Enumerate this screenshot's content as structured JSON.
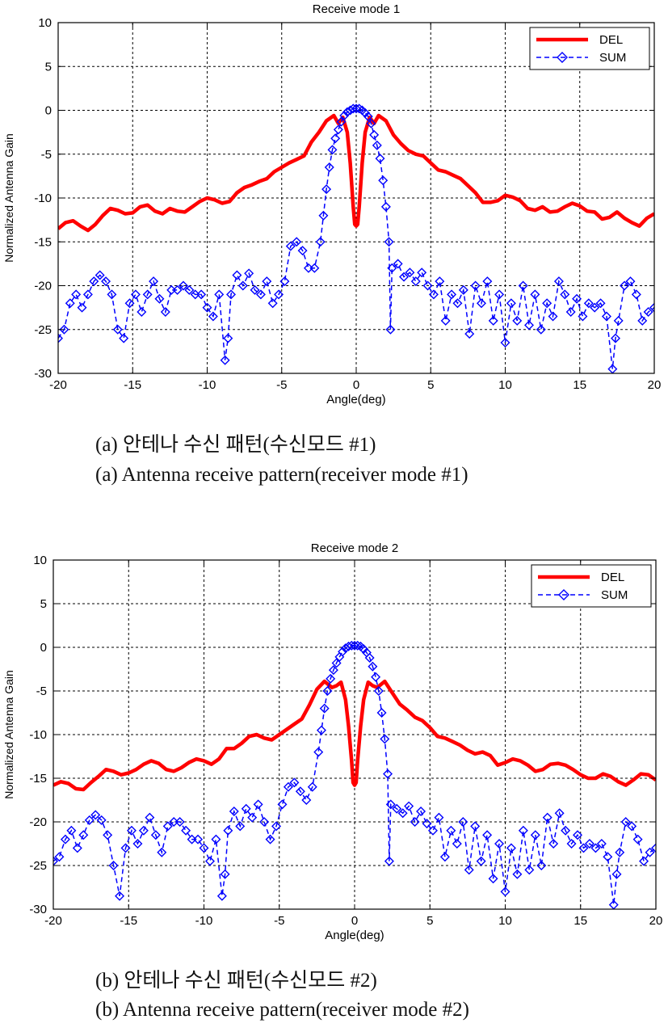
{
  "figures": [
    {
      "caption_ko": "(a)  안테나  수신  패턴(수신모드 #1)",
      "caption_en": "(a)  Antenna  receive  pattern(receiver  mode #1)"
    },
    {
      "caption_ko": "(b)  안테나  수신  패턴(수신모드 #2)",
      "caption_en": "(b)  Antenna receive  pattern(receiver  mode #2)"
    }
  ],
  "colors": {
    "del": "#ff0000",
    "sum": "#0000ff",
    "grid": "#000000"
  },
  "chart_data": [
    {
      "type": "line",
      "title": "Receive mode 1",
      "xlabel": "Angle(deg)",
      "ylabel": "Normalized Antenna Gain",
      "xlim": [
        -20,
        20
      ],
      "ylim": [
        -30,
        10
      ],
      "xticks": [
        -20,
        -15,
        -10,
        -5,
        0,
        5,
        10,
        15,
        20
      ],
      "yticks": [
        -30,
        -25,
        -20,
        -15,
        -10,
        -5,
        0,
        5,
        10
      ],
      "grid": true,
      "legend": "top-right",
      "series": [
        {
          "name": "DEL",
          "style": "solid-line",
          "color": "#ff0000",
          "x": [
            -20,
            -19.5,
            -19,
            -18.5,
            -18,
            -17.5,
            -17,
            -16.5,
            -16,
            -15.5,
            -15,
            -14.5,
            -14,
            -13.5,
            -13,
            -12.5,
            -12,
            -11.5,
            -11,
            -10.5,
            -10,
            -9.5,
            -9,
            -8.5,
            -8,
            -7.5,
            -7,
            -6.5,
            -6,
            -5.5,
            -5,
            -4.5,
            -4,
            -3.5,
            -3,
            -2.5,
            -2,
            -1.5,
            -1.2,
            -0.9,
            -0.6,
            -0.4,
            -0.2,
            -0.1,
            0,
            0.1,
            0.2,
            0.4,
            0.6,
            0.9,
            1.2,
            1.5,
            2,
            2.5,
            3,
            3.5,
            4,
            4.5,
            5,
            5.5,
            6,
            6.5,
            7,
            7.5,
            8,
            8.5,
            9,
            9.5,
            10,
            10.5,
            11,
            11.5,
            12,
            12.5,
            13,
            13.5,
            14,
            14.5,
            15,
            15.5,
            16,
            16.5,
            17,
            17.5,
            18,
            18.5,
            19,
            19.5,
            20
          ],
          "y": [
            -13.5,
            -12.8,
            -12.6,
            -13.2,
            -13.7,
            -13.0,
            -12.0,
            -11.2,
            -11.4,
            -11.8,
            -11.7,
            -11.0,
            -10.8,
            -11.5,
            -11.8,
            -11.2,
            -11.5,
            -11.6,
            -11.0,
            -10.4,
            -10.0,
            -10.2,
            -10.6,
            -10.4,
            -9.4,
            -8.8,
            -8.5,
            -8.1,
            -7.8,
            -7.0,
            -6.5,
            -6.0,
            -5.6,
            -5.2,
            -3.6,
            -2.5,
            -1.2,
            -0.6,
            -1.5,
            -0.8,
            -2.5,
            -6.0,
            -11.0,
            -13.0,
            -13.2,
            -13.0,
            -11.0,
            -6.0,
            -2.5,
            -0.8,
            -1.5,
            -0.6,
            -1.2,
            -2.8,
            -3.8,
            -4.6,
            -5.0,
            -5.2,
            -6.0,
            -6.8,
            -7.0,
            -7.4,
            -7.8,
            -8.6,
            -9.4,
            -10.5,
            -10.5,
            -10.3,
            -9.7,
            -9.9,
            -10.3,
            -11.2,
            -11.4,
            -11.0,
            -11.6,
            -11.5,
            -11.0,
            -10.6,
            -10.9,
            -11.5,
            -11.6,
            -12.4,
            -12.2,
            -11.6,
            -12.3,
            -12.8,
            -13.2,
            -12.3,
            -11.8
          ]
        },
        {
          "name": "SUM",
          "style": "dashed-diamond",
          "color": "#0000ff",
          "x": [
            -20,
            -19.6,
            -19.2,
            -18.8,
            -18.4,
            -18,
            -17.6,
            -17.2,
            -16.8,
            -16.4,
            -16,
            -15.6,
            -15.2,
            -14.8,
            -14.4,
            -14,
            -13.6,
            -13.2,
            -12.8,
            -12.4,
            -12,
            -11.6,
            -11.2,
            -10.8,
            -10.4,
            -10,
            -9.6,
            -9.2,
            -8.8,
            -8.6,
            -8.4,
            -8,
            -7.6,
            -7.2,
            -6.8,
            -6.4,
            -6,
            -5.6,
            -5.2,
            -4.8,
            -4.4,
            -4,
            -3.6,
            -3.2,
            -2.8,
            -2.4,
            -2.2,
            -2,
            -1.8,
            -1.6,
            -1.4,
            -1.2,
            -1,
            -0.8,
            -0.6,
            -0.4,
            -0.2,
            0,
            0.2,
            0.4,
            0.6,
            0.8,
            1,
            1.2,
            1.4,
            1.6,
            1.8,
            2,
            2.2,
            2.3,
            2.4,
            2.8,
            3.2,
            3.6,
            4,
            4.4,
            4.8,
            5.2,
            5.6,
            6,
            6.4,
            6.8,
            7.2,
            7.6,
            8,
            8.4,
            8.8,
            9.2,
            9.6,
            10,
            10.4,
            10.8,
            11.2,
            11.6,
            12,
            12.4,
            12.8,
            13.2,
            13.6,
            14,
            14.4,
            14.8,
            15.2,
            15.6,
            16,
            16.4,
            16.8,
            17.2,
            17.4,
            17.6,
            18,
            18.4,
            18.8,
            19.2,
            19.6,
            20
          ],
          "y": [
            -26.0,
            -25.0,
            -22.0,
            -21.0,
            -22.5,
            -21.0,
            -19.5,
            -18.8,
            -19.5,
            -21.0,
            -25.0,
            -26.0,
            -22.0,
            -21.0,
            -23.0,
            -21.0,
            -19.5,
            -21.5,
            -23.0,
            -20.5,
            -20.5,
            -20.0,
            -20.5,
            -21.0,
            -21.0,
            -22.5,
            -23.5,
            -21.0,
            -28.5,
            -26.0,
            -21.0,
            -18.8,
            -20.0,
            -18.6,
            -20.5,
            -21.0,
            -19.5,
            -22.0,
            -21.0,
            -19.5,
            -15.5,
            -15.0,
            -16.0,
            -18.0,
            -18.0,
            -15.0,
            -12.0,
            -9.0,
            -6.5,
            -4.5,
            -3.2,
            -2.2,
            -1.3,
            -0.6,
            -0.2,
            0.0,
            0.2,
            0.2,
            0.2,
            0.0,
            -0.3,
            -0.7,
            -1.5,
            -2.8,
            -4.0,
            -5.5,
            -8.0,
            -11.0,
            -15.0,
            -25.0,
            -18.0,
            -17.5,
            -19.0,
            -18.5,
            -19.5,
            -18.5,
            -20.0,
            -21.0,
            -19.5,
            -24.0,
            -21.0,
            -22.0,
            -20.5,
            -25.5,
            -20.0,
            -22.0,
            -19.5,
            -24.0,
            -21.0,
            -26.5,
            -22.0,
            -24.0,
            -20.0,
            -24.5,
            -21.0,
            -25.0,
            -22.0,
            -23.5,
            -19.5,
            -21.0,
            -23.0,
            -21.5,
            -23.5,
            -22.0,
            -22.5,
            -22.0,
            -23.5,
            -29.5,
            -26.0,
            -24.0,
            -20.0,
            -19.5,
            -21.0,
            -24.0,
            -23.0,
            -22.5
          ]
        }
      ]
    },
    {
      "type": "line",
      "title": "Receive mode 2",
      "xlabel": "Angle(deg)",
      "ylabel": "Normalized Antenna Gain",
      "xlim": [
        -20,
        20
      ],
      "ylim": [
        -30,
        10
      ],
      "xticks": [
        -20,
        -15,
        -10,
        -5,
        0,
        5,
        10,
        15,
        20
      ],
      "yticks": [
        -30,
        -25,
        -20,
        -15,
        -10,
        -5,
        0,
        5,
        10
      ],
      "grid": true,
      "legend": "top-right",
      "series": [
        {
          "name": "DEL",
          "style": "solid-line",
          "color": "#ff0000",
          "x": [
            -20,
            -19.5,
            -19,
            -18.5,
            -18,
            -17.5,
            -17,
            -16.5,
            -16,
            -15.5,
            -15,
            -14.5,
            -14,
            -13.5,
            -13,
            -12.5,
            -12,
            -11.5,
            -11,
            -10.5,
            -10,
            -9.5,
            -9,
            -8.5,
            -8,
            -7.5,
            -7,
            -6.5,
            -6,
            -5.5,
            -5,
            -4.5,
            -4,
            -3.5,
            -3,
            -2.5,
            -2,
            -1.5,
            -1.2,
            -0.9,
            -0.6,
            -0.4,
            -0.2,
            -0.1,
            0,
            0.1,
            0.2,
            0.4,
            0.6,
            0.9,
            1.2,
            1.5,
            2,
            2.5,
            3,
            3.5,
            4,
            4.5,
            5,
            5.5,
            6,
            6.5,
            7,
            7.5,
            8,
            8.5,
            9,
            9.5,
            10,
            10.5,
            11,
            11.5,
            12,
            12.5,
            13,
            13.5,
            14,
            14.5,
            15,
            15.5,
            16,
            16.5,
            17,
            17.5,
            18,
            18.5,
            19,
            19.5,
            20
          ],
          "y": [
            -15.8,
            -15.4,
            -15.6,
            -16.2,
            -16.3,
            -15.5,
            -14.8,
            -14.0,
            -14.2,
            -14.6,
            -14.4,
            -14.0,
            -13.4,
            -13.0,
            -13.3,
            -14.0,
            -14.2,
            -13.8,
            -13.2,
            -12.8,
            -13.0,
            -13.4,
            -12.8,
            -11.6,
            -11.6,
            -11.0,
            -10.2,
            -10.0,
            -10.4,
            -10.6,
            -10.0,
            -9.4,
            -8.8,
            -8.2,
            -6.6,
            -4.8,
            -3.9,
            -4.6,
            -4.4,
            -4.0,
            -6.0,
            -9.0,
            -13.0,
            -15.5,
            -15.8,
            -15.5,
            -13.0,
            -9.0,
            -6.0,
            -4.0,
            -4.4,
            -4.6,
            -3.9,
            -5.2,
            -6.5,
            -7.2,
            -8.0,
            -8.4,
            -9.2,
            -10.2,
            -10.4,
            -10.8,
            -11.2,
            -11.8,
            -12.2,
            -12.0,
            -12.4,
            -13.5,
            -13.2,
            -12.8,
            -13.0,
            -13.5,
            -14.2,
            -14.0,
            -13.4,
            -13.3,
            -13.5,
            -14.0,
            -14.6,
            -15.0,
            -15.0,
            -14.5,
            -14.8,
            -15.4,
            -15.8,
            -15.2,
            -14.5,
            -14.6,
            -15.2
          ]
        },
        {
          "name": "SUM",
          "style": "dashed-diamond",
          "color": "#0000ff",
          "x": [
            -20,
            -19.6,
            -19.2,
            -18.8,
            -18.4,
            -18,
            -17.6,
            -17.2,
            -16.8,
            -16.4,
            -16,
            -15.6,
            -15.2,
            -14.8,
            -14.4,
            -14,
            -13.6,
            -13.2,
            -12.8,
            -12.4,
            -12,
            -11.6,
            -11.2,
            -10.8,
            -10.4,
            -10,
            -9.6,
            -9.2,
            -8.8,
            -8.6,
            -8.4,
            -8,
            -7.6,
            -7.2,
            -6.8,
            -6.4,
            -6,
            -5.6,
            -5.2,
            -4.8,
            -4.4,
            -4,
            -3.6,
            -3.2,
            -2.8,
            -2.4,
            -2.2,
            -2,
            -1.8,
            -1.6,
            -1.4,
            -1.2,
            -1,
            -0.8,
            -0.6,
            -0.4,
            -0.2,
            0,
            0.2,
            0.4,
            0.6,
            0.8,
            1,
            1.2,
            1.4,
            1.6,
            1.8,
            2,
            2.2,
            2.3,
            2.4,
            2.8,
            3.2,
            3.6,
            4,
            4.4,
            4.8,
            5.2,
            5.6,
            6,
            6.4,
            6.8,
            7.2,
            7.6,
            8,
            8.4,
            8.8,
            9.2,
            9.6,
            10,
            10.4,
            10.8,
            11.2,
            11.6,
            12,
            12.4,
            12.8,
            13.2,
            13.6,
            14,
            14.4,
            14.8,
            15.2,
            15.6,
            16,
            16.4,
            16.8,
            17.2,
            17.4,
            17.6,
            18,
            18.4,
            18.8,
            19.2,
            19.6,
            20
          ],
          "y": [
            -24.5,
            -24.0,
            -22.0,
            -21.0,
            -23.0,
            -21.5,
            -19.8,
            -19.2,
            -19.8,
            -21.5,
            -25.0,
            -28.5,
            -23.0,
            -21.0,
            -22.5,
            -21.0,
            -19.5,
            -21.5,
            -23.5,
            -20.5,
            -20.0,
            -20.0,
            -21.0,
            -22.0,
            -22.0,
            -23.0,
            -24.5,
            -22.0,
            -28.5,
            -26.0,
            -21.0,
            -18.8,
            -20.5,
            -18.5,
            -19.5,
            -18.0,
            -20.0,
            -22.0,
            -20.5,
            -18.0,
            -16.0,
            -15.5,
            -16.5,
            -17.5,
            -16.0,
            -12.0,
            -9.5,
            -7.0,
            -5.0,
            -3.6,
            -2.6,
            -1.8,
            -1.1,
            -0.5,
            -0.1,
            0.1,
            0.2,
            0.2,
            0.2,
            0.1,
            -0.2,
            -0.6,
            -1.2,
            -2.2,
            -3.4,
            -5.0,
            -7.5,
            -10.5,
            -14.5,
            -24.5,
            -18.0,
            -18.5,
            -19.0,
            -18.2,
            -20.0,
            -18.8,
            -20.2,
            -21.0,
            -19.5,
            -24.0,
            -21.0,
            -22.5,
            -20.0,
            -25.5,
            -20.5,
            -24.5,
            -21.5,
            -26.5,
            -22.5,
            -28.0,
            -23.0,
            -26.0,
            -21.0,
            -25.5,
            -21.5,
            -25.0,
            -19.5,
            -22.5,
            -19.0,
            -21.0,
            -22.5,
            -21.5,
            -23.0,
            -22.5,
            -23.0,
            -22.5,
            -24.0,
            -29.5,
            -26.0,
            -23.5,
            -20.0,
            -20.5,
            -22.0,
            -24.5,
            -23.5,
            -23.0
          ]
        }
      ]
    }
  ]
}
